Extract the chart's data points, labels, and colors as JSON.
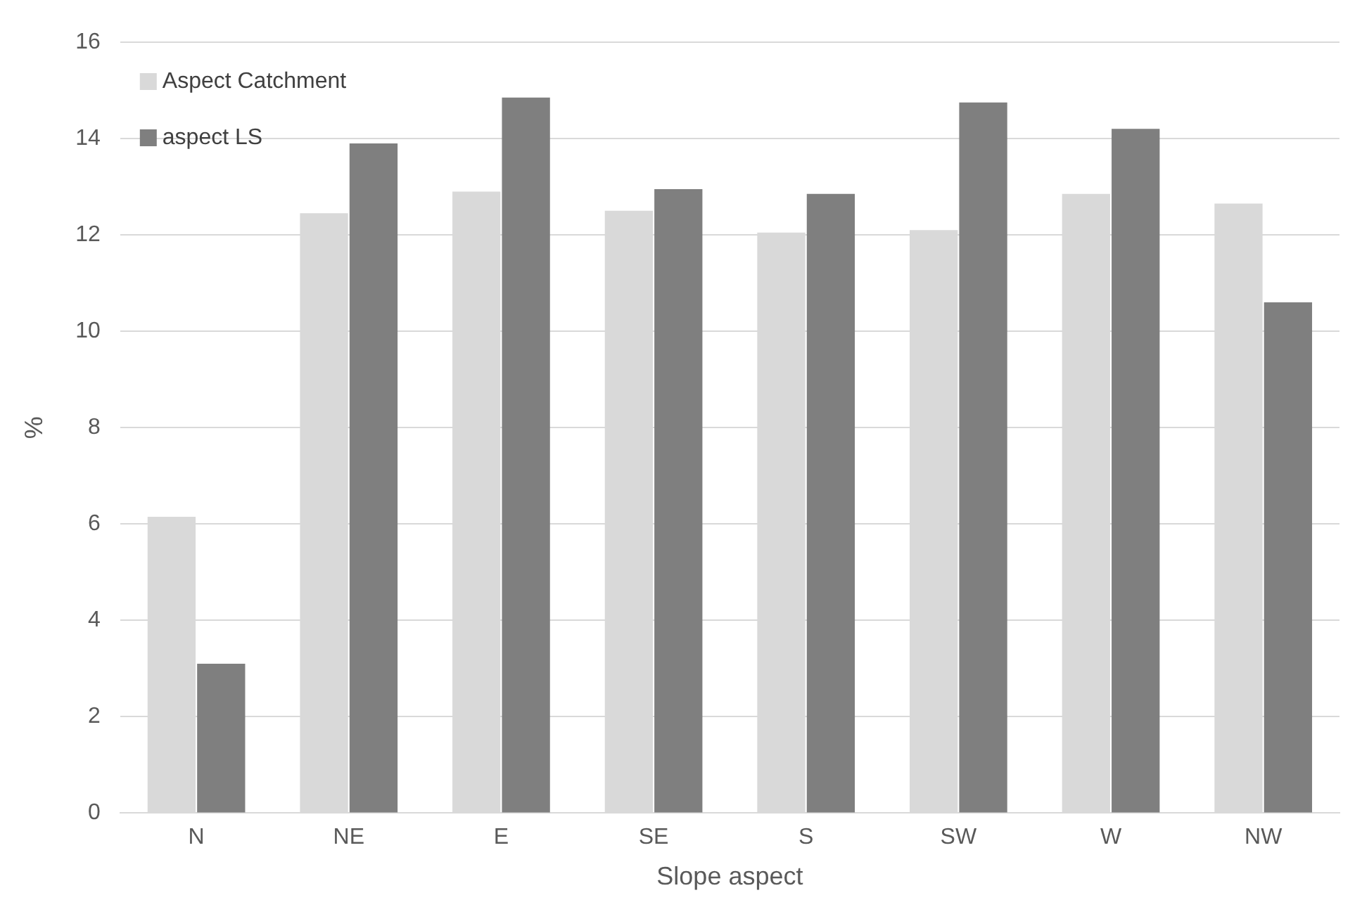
{
  "chart_data": {
    "type": "bar",
    "xlabel": "Slope aspect",
    "ylabel": "%",
    "categories": [
      "N",
      "NE",
      "E",
      "SE",
      "S",
      "SW",
      "W",
      "NW"
    ],
    "series": [
      {
        "name": "Aspect Catchment",
        "color": "#d9d9d9",
        "values": [
          6.15,
          12.45,
          12.9,
          12.5,
          12.05,
          12.1,
          12.85,
          12.65
        ]
      },
      {
        "name": "aspect LS",
        "color": "#7f7f7f",
        "values": [
          3.1,
          13.9,
          14.85,
          12.95,
          12.85,
          14.75,
          14.2,
          10.6
        ]
      }
    ],
    "ylim": [
      0,
      16
    ],
    "yticks": [
      0,
      2,
      4,
      6,
      8,
      10,
      12,
      14,
      16
    ],
    "grid": "y",
    "legend": "top left"
  }
}
